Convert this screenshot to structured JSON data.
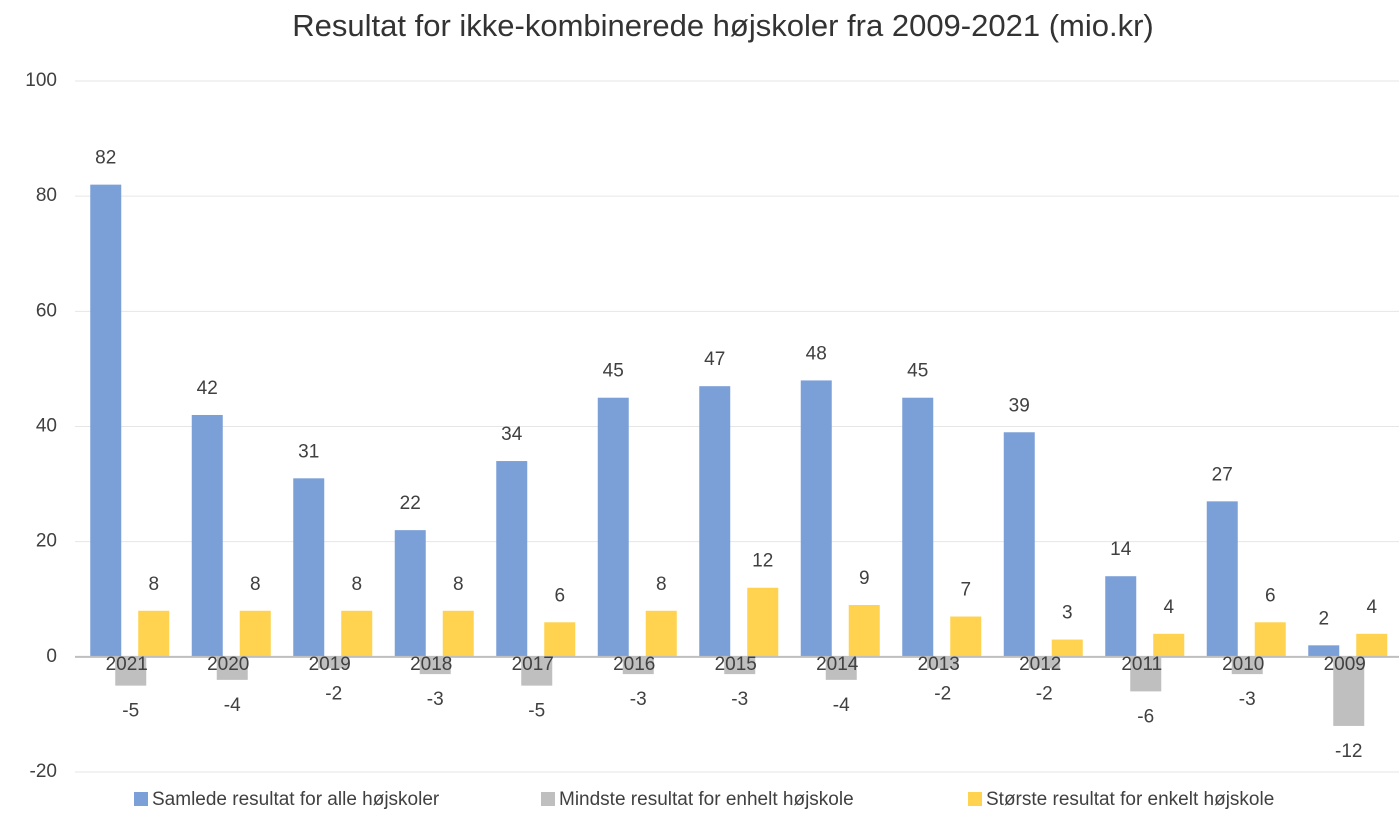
{
  "chart_data": {
    "type": "bar",
    "title": "Resultat for ikke-kombinerede højskoler fra 2009-2021 (mio.kr)",
    "categories": [
      "2021",
      "2020",
      "2019",
      "2018",
      "2017",
      "2016",
      "2015",
      "2014",
      "2013",
      "2012",
      "2011",
      "2010",
      "2009"
    ],
    "series": [
      {
        "name": "Samlede resultat for alle højskoler",
        "color": "#7b9fd7",
        "values": [
          82,
          42,
          31,
          22,
          34,
          45,
          47,
          48,
          45,
          39,
          14,
          27,
          2
        ]
      },
      {
        "name": "Mindste resultat for enhelt højskole",
        "color": "#bfbfbf",
        "values": [
          -5,
          -4,
          -2,
          -3,
          -5,
          -3,
          -3,
          -4,
          -2,
          -2,
          -6,
          -3,
          -12
        ]
      },
      {
        "name": "Største resultat for enkelt højskole",
        "color": "#ffd34f",
        "values": [
          8,
          8,
          8,
          8,
          6,
          8,
          12,
          9,
          7,
          3,
          4,
          6,
          4
        ]
      }
    ],
    "ylim": [
      -20,
      100
    ],
    "yticks": [
      -20,
      0,
      20,
      40,
      60,
      80,
      100
    ],
    "grid": true,
    "legend": "bottom"
  }
}
